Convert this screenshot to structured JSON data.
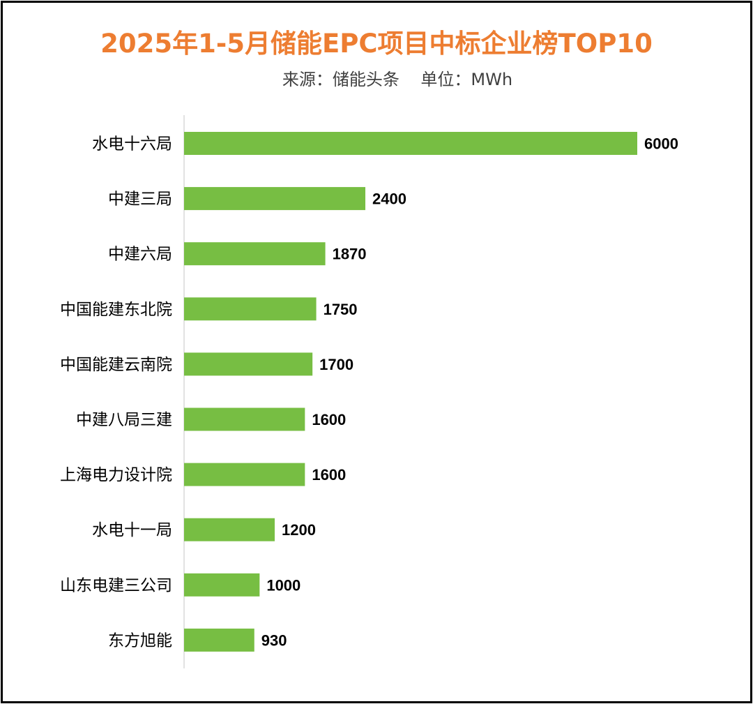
{
  "colors": {
    "title": "#ED7D31",
    "bar": "#77BE43",
    "axis": "#D9D9D9",
    "text": "#000000",
    "subtitle": "#404040"
  },
  "chart_data": {
    "type": "bar",
    "orientation": "horizontal",
    "title": "2025年1-5月储能EPC项目中标企业榜TOP10",
    "subtitle": "来源：储能头条    单位：MWh",
    "categories": [
      "水电十六局",
      "中建三局",
      "中建六局",
      "中国能建东北院",
      "中国能建云南院",
      "中建八局三建",
      "上海电力设计院",
      "水电十一局",
      "山东电建三公司",
      "东方旭能"
    ],
    "values": [
      6000,
      2400,
      1870,
      1750,
      1700,
      1600,
      1600,
      1200,
      1000,
      930
    ],
    "data_labels": [
      "6000",
      "2400",
      "1870",
      "1750",
      "1700",
      "1600",
      "1600",
      "1200",
      "1000",
      "930"
    ],
    "xlim": [
      0,
      6000
    ],
    "grid": false,
    "legend": "none"
  }
}
